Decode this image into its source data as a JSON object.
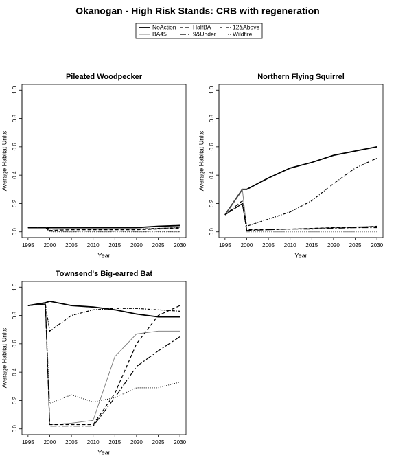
{
  "title": "Okanogan  - High Risk Stands: CRB with regeneration",
  "chart_data": [
    {
      "type": "line",
      "title": "Pileated Woodpecker",
      "xlabel": "Year",
      "ylabel": "Average Habitat Units",
      "x": [
        1995,
        1999,
        2000,
        2005,
        2010,
        2015,
        2020,
        2025,
        2030
      ],
      "xlim": [
        1993.6,
        2031.4
      ],
      "ylim": [
        -0.04,
        1.04
      ],
      "xticks": [
        1995,
        2000,
        2005,
        2010,
        2015,
        2020,
        2025,
        2030
      ],
      "yticks": [
        {
          "value": 0,
          "label": "0.0"
        },
        0.2,
        0.4,
        0.6,
        0.8,
        {
          "value": 1,
          "label": "1.0"
        }
      ],
      "series": [
        {
          "name": "NoAction",
          "color": "#000000",
          "line_width": 1.8,
          "dash": "solid",
          "values": [
            0.03,
            0.03,
            0.03,
            0.03,
            0.03,
            0.03,
            0.03,
            0.04,
            0.045
          ]
        },
        {
          "name": "BA45",
          "color": "#777777",
          "line_width": 0.9,
          "dash": "solid",
          "values": [
            0.03,
            0.03,
            0.02,
            0.02,
            0.02,
            0.02,
            0.02,
            0.025,
            0.03
          ]
        },
        {
          "name": "HalfBA",
          "color": "#000000",
          "line_width": 1.2,
          "dash": "dashed",
          "values": [
            0.03,
            0.03,
            0.01,
            0.015,
            0.015,
            0.015,
            0.015,
            0.02,
            0.025
          ]
        },
        {
          "name": "9&Under",
          "color": "#000000",
          "line_width": 1.2,
          "dash": "longdash",
          "values": [
            0.03,
            0.03,
            0.005,
            0.005,
            0.005,
            0.005,
            0.005,
            0.005,
            0.005
          ]
        },
        {
          "name": "12&Above",
          "color": "#000000",
          "line_width": 1.2,
          "dash": "dotdash",
          "values": [
            0.03,
            0.03,
            0.02,
            0.02,
            0.02,
            0.02,
            0.02,
            0.025,
            0.03
          ]
        },
        {
          "name": "Wildfire",
          "color": "#000000",
          "line_width": 1,
          "dash": "twodash",
          "values": [
            0.03,
            0.03,
            0,
            0,
            0,
            0,
            0,
            0,
            0
          ]
        }
      ]
    },
    {
      "type": "line",
      "title": "Northern Flying Squirrel",
      "xlabel": "Year",
      "ylabel": "Average Habitat Units",
      "x": [
        1995,
        1999,
        2000,
        2005,
        2010,
        2015,
        2020,
        2025,
        2030
      ],
      "xlim": [
        1993.6,
        2031.4
      ],
      "ylim": [
        -0.04,
        1.04
      ],
      "xticks": [
        1995,
        2000,
        2005,
        2010,
        2015,
        2020,
        2025,
        2030
      ],
      "yticks": [
        {
          "value": 0,
          "label": "0.0"
        },
        0.2,
        0.4,
        0.6,
        0.8,
        {
          "value": 1,
          "label": "1.0"
        }
      ],
      "series": [
        {
          "name": "NoAction",
          "color": "#000000",
          "line_width": 1.8,
          "dash": "solid",
          "values": [
            0.12,
            0.3,
            0.3,
            0.38,
            0.45,
            0.49,
            0.54,
            0.57,
            0.6
          ]
        },
        {
          "name": "BA45",
          "color": "#777777",
          "line_width": 0.9,
          "dash": "solid",
          "values": [
            0.12,
            0.3,
            0.02,
            0.02,
            0.02,
            0.025,
            0.03,
            0.035,
            0.04
          ]
        },
        {
          "name": "HalfBA",
          "color": "#000000",
          "line_width": 1.2,
          "dash": "dashed",
          "values": [
            0.12,
            0.2,
            0.015,
            0.015,
            0.02,
            0.025,
            0.03,
            0.03,
            0.04
          ]
        },
        {
          "name": "9&Under",
          "color": "#000000",
          "line_width": 1.2,
          "dash": "longdash",
          "values": [
            0.12,
            0.2,
            0.01,
            0.015,
            0.02,
            0.02,
            0.025,
            0.03,
            0.03
          ]
        },
        {
          "name": "12&Above",
          "color": "#000000",
          "line_width": 1.2,
          "dash": "dotdash",
          "values": [
            0.12,
            0.22,
            0.04,
            0.09,
            0.14,
            0.22,
            0.34,
            0.45,
            0.52
          ]
        },
        {
          "name": "Wildfire",
          "color": "#000000",
          "line_width": 1,
          "dash": "twodash",
          "values": [
            0.12,
            0.2,
            0,
            0,
            0,
            0,
            0,
            0,
            0
          ]
        }
      ]
    },
    {
      "type": "line",
      "title": "Townsend's Big-earred Bat",
      "xlabel": "Year",
      "ylabel": "Average Habitat Units",
      "x": [
        1995,
        1999,
        2000,
        2005,
        2010,
        2015,
        2020,
        2025,
        2030
      ],
      "xlim": [
        1993.6,
        2031.4
      ],
      "ylim": [
        -0.04,
        1.04
      ],
      "xticks": [
        1995,
        2000,
        2005,
        2010,
        2015,
        2020,
        2025,
        2030
      ],
      "yticks": [
        {
          "value": 0,
          "label": "0.0"
        },
        0.2,
        0.4,
        0.6,
        0.8,
        {
          "value": 1,
          "label": "1.0"
        }
      ],
      "series": [
        {
          "name": "NoAction",
          "color": "#000000",
          "line_width": 1.8,
          "dash": "solid",
          "values": [
            0.87,
            0.89,
            0.9,
            0.87,
            0.86,
            0.84,
            0.81,
            0.79,
            0.79
          ]
        },
        {
          "name": "BA45",
          "color": "#777777",
          "line_width": 0.9,
          "dash": "solid",
          "values": [
            0.87,
            0.88,
            0.03,
            0.04,
            0.06,
            0.51,
            0.67,
            0.69,
            0.69
          ]
        },
        {
          "name": "HalfBA",
          "color": "#000000",
          "line_width": 1.2,
          "dash": "dashed",
          "values": [
            0.87,
            0.88,
            0.03,
            0.03,
            0.03,
            0.25,
            0.6,
            0.8,
            0.87
          ]
        },
        {
          "name": "9&Under",
          "color": "#000000",
          "line_width": 1.2,
          "dash": "longdash",
          "values": [
            0.87,
            0.88,
            0.02,
            0.02,
            0.02,
            0.22,
            0.44,
            0.55,
            0.65
          ]
        },
        {
          "name": "12&Above",
          "color": "#000000",
          "line_width": 1.2,
          "dash": "dotdash",
          "values": [
            0.87,
            0.88,
            0.69,
            0.8,
            0.84,
            0.85,
            0.85,
            0.84,
            0.83
          ]
        },
        {
          "name": "Wildfire",
          "color": "#000000",
          "line_width": 1,
          "dash": "twodash",
          "values": [
            0.87,
            0.88,
            0.18,
            0.24,
            0.19,
            0.22,
            0.29,
            0.29,
            0.33
          ]
        }
      ]
    }
  ]
}
